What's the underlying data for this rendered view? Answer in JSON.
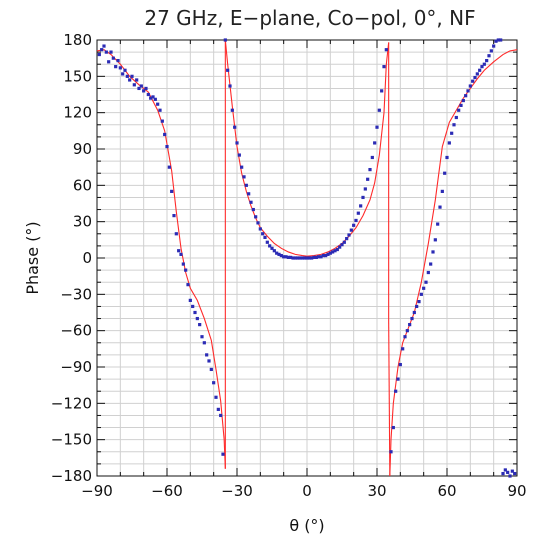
{
  "chart_data": {
    "type": "scatter",
    "title": "27 GHz, E−plane, Co−pol, 0°, NF",
    "xlabel": "θ (°)",
    "ylabel": "Phase (°)",
    "xlim": [
      -90,
      90
    ],
    "ylim": [
      -180,
      180
    ],
    "x_ticks": [
      -90,
      -60,
      -30,
      0,
      30,
      60,
      90
    ],
    "y_ticks": [
      180,
      150,
      120,
      90,
      60,
      30,
      0,
      -30,
      -60,
      -90,
      -120,
      -150,
      -180
    ],
    "x_tick_labels": [
      "−90",
      "−60",
      "−30",
      "0",
      "30",
      "60",
      "90"
    ],
    "y_tick_labels": [
      "180",
      "150",
      "120",
      "90",
      "60",
      "30",
      "0",
      "−30",
      "−60",
      "−90",
      "−120",
      "−150",
      "−180"
    ],
    "grid": true,
    "series": [
      {
        "style": "line",
        "color": "#ff2a2a",
        "segments": [
          [
            [
              -90,
              171
            ],
            [
              -87,
              172
            ],
            [
              -84,
              168
            ],
            [
              -80,
              160
            ],
            [
              -76,
              150
            ],
            [
              -72,
              143
            ],
            [
              -68,
              137
            ],
            [
              -64,
              122
            ],
            [
              -61,
              105
            ],
            [
              -58,
              72
            ],
            [
              -56,
              38
            ],
            [
              -54,
              8
            ],
            [
              -52,
              -12
            ],
            [
              -50,
              -25
            ],
            [
              -47,
              -35
            ],
            [
              -44,
              -50
            ],
            [
              -41,
              -68
            ],
            [
              -39,
              -92
            ],
            [
              -37,
              -118
            ],
            [
              -35.5,
              -150
            ],
            [
              -35,
              -174
            ]
          ],
          [
            [
              -35,
              -174
            ],
            [
              -35,
              180
            ]
          ],
          [
            [
              -35,
              180
            ],
            [
              -34,
              160
            ],
            [
              -32,
              125
            ],
            [
              -30,
              92
            ],
            [
              -28,
              70
            ],
            [
              -26,
              55
            ],
            [
              -24,
              43
            ],
            [
              -22,
              33
            ],
            [
              -20,
              25
            ],
            [
              -17,
              18
            ],
            [
              -14,
              12
            ],
            [
              -11,
              8
            ],
            [
              -8,
              5
            ],
            [
              -5,
              3
            ],
            [
              -2,
              2
            ],
            [
              0,
              1.5
            ],
            [
              3,
              2
            ],
            [
              6,
              3
            ],
            [
              9,
              5
            ],
            [
              12,
              8
            ],
            [
              15,
              12
            ],
            [
              18,
              18
            ],
            [
              21,
              25
            ],
            [
              24,
              35
            ],
            [
              27,
              48
            ],
            [
              29,
              62
            ],
            [
              31,
              85
            ],
            [
              33,
              120
            ],
            [
              34,
              160
            ],
            [
              35,
              178
            ]
          ],
          [
            [
              35,
              178
            ],
            [
              35,
              -52
            ]
          ],
          [
            [
              35,
              -52
            ],
            [
              35.5,
              -180
            ]
          ],
          [
            [
              35.5,
              -180
            ],
            [
              36,
              -150
            ],
            [
              37,
              -120
            ],
            [
              39,
              -90
            ],
            [
              41,
              -70
            ],
            [
              43,
              -60
            ],
            [
              46,
              -45
            ],
            [
              49,
              -20
            ],
            [
              52,
              12
            ],
            [
              55,
              48
            ],
            [
              58,
              92
            ],
            [
              61,
              112
            ],
            [
              64,
              122
            ],
            [
              67,
              132
            ],
            [
              70,
              140
            ],
            [
              73,
              148
            ],
            [
              76,
              155
            ],
            [
              80,
              162
            ],
            [
              84,
              168
            ],
            [
              87,
              171
            ],
            [
              90,
              172
            ]
          ]
        ]
      },
      {
        "style": "markers",
        "color": "#2b2bb5",
        "points": [
          [
            -89,
            168
          ],
          [
            -88,
            172
          ],
          [
            -87,
            175
          ],
          [
            -86,
            170
          ],
          [
            -85,
            162
          ],
          [
            -84,
            170
          ],
          [
            -83,
            165
          ],
          [
            -82,
            158
          ],
          [
            -81,
            163
          ],
          [
            -80,
            157
          ],
          [
            -79,
            152
          ],
          [
            -78,
            155
          ],
          [
            -77,
            150
          ],
          [
            -76,
            147
          ],
          [
            -75,
            150
          ],
          [
            -74,
            143
          ],
          [
            -73,
            147
          ],
          [
            -72,
            140
          ],
          [
            -71,
            142
          ],
          [
            -70,
            138
          ],
          [
            -69,
            140
          ],
          [
            -68,
            135
          ],
          [
            -67,
            132
          ],
          [
            -66,
            133
          ],
          [
            -65,
            131
          ],
          [
            -64,
            127
          ],
          [
            -63,
            122
          ],
          [
            -62,
            113
          ],
          [
            -61,
            102
          ],
          [
            -60,
            92
          ],
          [
            -59,
            75
          ],
          [
            -58,
            55
          ],
          [
            -57,
            35
          ],
          [
            -56,
            20
          ],
          [
            -55,
            6
          ],
          [
            -54,
            3
          ],
          [
            -53,
            -5
          ],
          [
            -52,
            -10
          ],
          [
            -51,
            -22
          ],
          [
            -50,
            -35
          ],
          [
            -49,
            -40
          ],
          [
            -48,
            -45
          ],
          [
            -47,
            -50
          ],
          [
            -46,
            -55
          ],
          [
            -45,
            -65
          ],
          [
            -44,
            -70
          ],
          [
            -43,
            -80
          ],
          [
            -42,
            -85
          ],
          [
            -41,
            -92
          ],
          [
            -40,
            -103
          ],
          [
            -39,
            -115
          ],
          [
            -38,
            -125
          ],
          [
            -37,
            -130
          ],
          [
            -36,
            -162
          ],
          [
            -35,
            180
          ],
          [
            -34,
            155
          ],
          [
            -33,
            142
          ],
          [
            -32,
            122
          ],
          [
            -31,
            108
          ],
          [
            -30,
            95
          ],
          [
            -29,
            85
          ],
          [
            -28,
            75
          ],
          [
            -27,
            67
          ],
          [
            -26,
            60
          ],
          [
            -25,
            53
          ],
          [
            -24,
            46
          ],
          [
            -23,
            40
          ],
          [
            -22,
            34
          ],
          [
            -21,
            29
          ],
          [
            -20,
            24
          ],
          [
            -19,
            20
          ],
          [
            -18,
            17
          ],
          [
            -17,
            13
          ],
          [
            -16,
            10
          ],
          [
            -15,
            8
          ],
          [
            -14,
            6
          ],
          [
            -13,
            4
          ],
          [
            -12,
            3
          ],
          [
            -11,
            2
          ],
          [
            -10,
            1
          ],
          [
            -9,
            1
          ],
          [
            -8,
            0.5
          ],
          [
            -7,
            0.5
          ],
          [
            -6,
            0
          ],
          [
            -5,
            0
          ],
          [
            -4,
            0
          ],
          [
            -3,
            0
          ],
          [
            -2,
            0
          ],
          [
            -1,
            0
          ],
          [
            0,
            0
          ],
          [
            1,
            0
          ],
          [
            2,
            0
          ],
          [
            3,
            0.5
          ],
          [
            4,
            0.5
          ],
          [
            5,
            1
          ],
          [
            6,
            1
          ],
          [
            7,
            2
          ],
          [
            8,
            2
          ],
          [
            9,
            3
          ],
          [
            10,
            4
          ],
          [
            11,
            5
          ],
          [
            12,
            6
          ],
          [
            13,
            7
          ],
          [
            14,
            9
          ],
          [
            15,
            11
          ],
          [
            16,
            13
          ],
          [
            17,
            16
          ],
          [
            18,
            19
          ],
          [
            19,
            23
          ],
          [
            20,
            27
          ],
          [
            21,
            31
          ],
          [
            22,
            37
          ],
          [
            23,
            43
          ],
          [
            24,
            50
          ],
          [
            25,
            57
          ],
          [
            26,
            65
          ],
          [
            27,
            73
          ],
          [
            28,
            83
          ],
          [
            29,
            95
          ],
          [
            30,
            108
          ],
          [
            31,
            122
          ],
          [
            32,
            138
          ],
          [
            33,
            158
          ],
          [
            34,
            172
          ],
          [
            36,
            -160
          ],
          [
            37,
            -140
          ],
          [
            38,
            -110
          ],
          [
            39,
            -100
          ],
          [
            40,
            -88
          ],
          [
            41,
            -75
          ],
          [
            42,
            -65
          ],
          [
            43,
            -60
          ],
          [
            44,
            -55
          ],
          [
            45,
            -50
          ],
          [
            46,
            -45
          ],
          [
            47,
            -40
          ],
          [
            48,
            -36
          ],
          [
            49,
            -30
          ],
          [
            50,
            -25
          ],
          [
            51,
            -20
          ],
          [
            52,
            -12
          ],
          [
            53,
            -5
          ],
          [
            54,
            5
          ],
          [
            55,
            15
          ],
          [
            56,
            28
          ],
          [
            57,
            42
          ],
          [
            58,
            55
          ],
          [
            59,
            70
          ],
          [
            60,
            83
          ],
          [
            61,
            95
          ],
          [
            62,
            103
          ],
          [
            63,
            110
          ],
          [
            64,
            116
          ],
          [
            65,
            122
          ],
          [
            66,
            126
          ],
          [
            67,
            130
          ],
          [
            68,
            134
          ],
          [
            69,
            138
          ],
          [
            70,
            142
          ],
          [
            71,
            146
          ],
          [
            72,
            149
          ],
          [
            73,
            152
          ],
          [
            74,
            155
          ],
          [
            75,
            158
          ],
          [
            76,
            160
          ],
          [
            77,
            163
          ],
          [
            78,
            167
          ],
          [
            79,
            171
          ],
          [
            80,
            175
          ],
          [
            81,
            179
          ],
          [
            82,
            180
          ],
          [
            83,
            180
          ],
          [
            84,
            -178
          ],
          [
            85,
            -175
          ],
          [
            86,
            -177
          ],
          [
            87,
            -180
          ],
          [
            88,
            -176
          ],
          [
            89,
            -178
          ]
        ]
      }
    ]
  }
}
